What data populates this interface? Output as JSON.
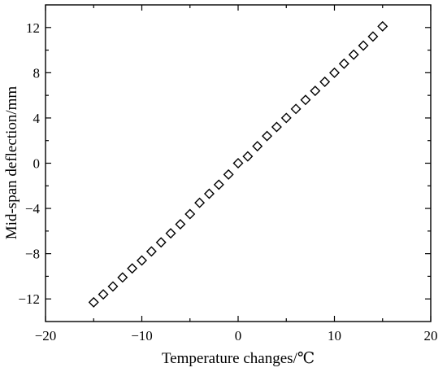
{
  "chart_data": {
    "type": "scatter",
    "xlabel": "Temperature changes/℃",
    "ylabel": "Mid-span deflection/mm",
    "xlim": [
      -20,
      20
    ],
    "ylim": [
      -14,
      14
    ],
    "x_ticks": [
      -20,
      -10,
      0,
      10,
      20
    ],
    "x_tick_labels": [
      "−20",
      "−10",
      "0",
      "10",
      "20"
    ],
    "y_ticks": [
      -12,
      -8,
      -4,
      0,
      4,
      8,
      12
    ],
    "y_tick_labels": [
      "−12",
      "−8",
      "−4",
      "0",
      "4",
      "8",
      "12"
    ],
    "grid": false,
    "marker": "diamond-open",
    "series": [
      {
        "x": [
          -15,
          -14,
          -13,
          -12,
          -11,
          -10,
          -9,
          -8,
          -7,
          -6,
          -5,
          -4,
          -3,
          -2,
          -1,
          0,
          1,
          2,
          3,
          4,
          5,
          6,
          7,
          8,
          9,
          10,
          11,
          12,
          13,
          14,
          15
        ],
        "y": [
          -12.3,
          -11.6,
          -10.9,
          -10.1,
          -9.3,
          -8.6,
          -7.8,
          -7.0,
          -6.2,
          -5.4,
          -4.5,
          -3.5,
          -2.7,
          -1.9,
          -1.0,
          0.0,
          0.6,
          1.5,
          2.4,
          3.2,
          4.0,
          4.8,
          5.6,
          6.4,
          7.2,
          8.0,
          8.8,
          9.6,
          10.4,
          11.2,
          12.1
        ]
      }
    ]
  }
}
